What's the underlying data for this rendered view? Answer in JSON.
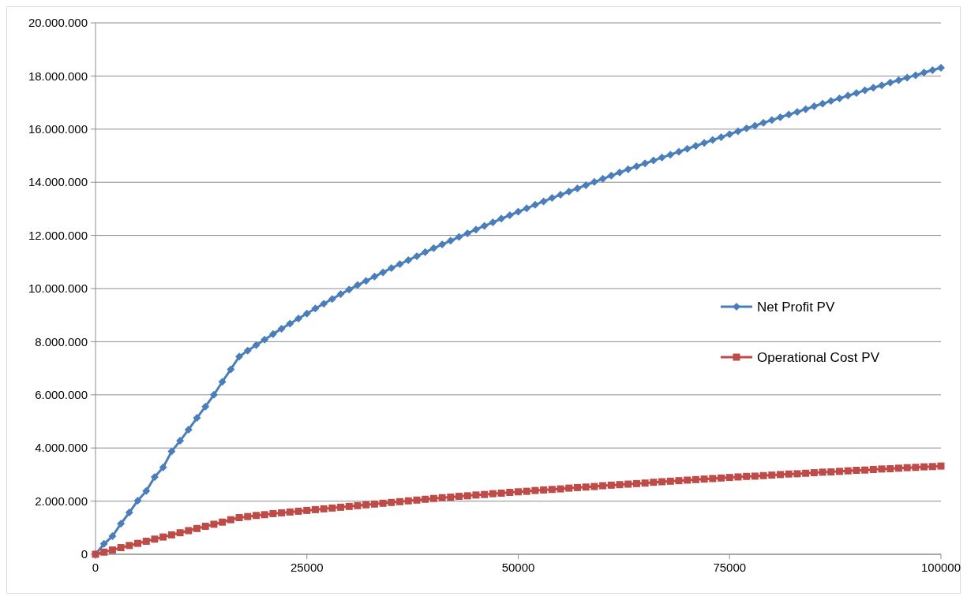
{
  "chart_data": {
    "type": "line",
    "x": [
      0,
      1000,
      2000,
      3000,
      4000,
      5000,
      6000,
      7000,
      8000,
      9000,
      10000,
      11000,
      12000,
      13000,
      14000,
      15000,
      16000,
      17000,
      18000,
      19000,
      20000,
      21000,
      22000,
      23000,
      24000,
      25000,
      26000,
      27000,
      28000,
      29000,
      30000,
      31000,
      32000,
      33000,
      34000,
      35000,
      36000,
      37000,
      38000,
      39000,
      40000,
      41000,
      42000,
      43000,
      44000,
      45000,
      46000,
      47000,
      48000,
      49000,
      50000,
      51000,
      52000,
      53000,
      54000,
      55000,
      56000,
      57000,
      58000,
      59000,
      60000,
      61000,
      62000,
      63000,
      64000,
      65000,
      66000,
      67000,
      68000,
      69000,
      70000,
      71000,
      72000,
      73000,
      74000,
      75000,
      76000,
      77000,
      78000,
      79000,
      80000,
      81000,
      82000,
      83000,
      84000,
      85000,
      86000,
      87000,
      88000,
      89000,
      90000,
      91000,
      92000,
      93000,
      94000,
      95000,
      96000,
      97000,
      98000,
      99000,
      100000
    ],
    "series": [
      {
        "name": "Net Profit PV",
        "color": "#4a7ebb",
        "marker": "diamond",
        "values": [
          0,
          390000,
          680000,
          1150000,
          1570000,
          2020000,
          2380000,
          2910000,
          3270000,
          3870000,
          4270000,
          4690000,
          5130000,
          5560000,
          6000000,
          6490000,
          6960000,
          7440000,
          7660000,
          7870000,
          8080000,
          8290000,
          8490000,
          8680000,
          8870000,
          9060000,
          9250000,
          9430000,
          9610000,
          9790000,
          9960000,
          10130000,
          10290000,
          10450000,
          10610000,
          10770000,
          10920000,
          11070000,
          11220000,
          11370000,
          11520000,
          11660000,
          11800000,
          11940000,
          12080000,
          12220000,
          12360000,
          12490000,
          12630000,
          12760000,
          12890000,
          13020000,
          13150000,
          13280000,
          13410000,
          13530000,
          13650000,
          13770000,
          13890000,
          14010000,
          14130000,
          14250000,
          14370000,
          14490000,
          14600000,
          14710000,
          14820000,
          14930000,
          15040000,
          15150000,
          15260000,
          15370000,
          15480000,
          15590000,
          15700000,
          15810000,
          15920000,
          16030000,
          16130000,
          16240000,
          16340000,
          16450000,
          16550000,
          16650000,
          16750000,
          16860000,
          16960000,
          17060000,
          17160000,
          17260000,
          17360000,
          17460000,
          17560000,
          17650000,
          17750000,
          17840000,
          17940000,
          18030000,
          18130000,
          18220000,
          18310000
        ]
      },
      {
        "name": "Operational Cost PV",
        "color": "#be4b48",
        "marker": "square",
        "values": [
          0,
          80000,
          160000,
          250000,
          330000,
          410000,
          490000,
          570000,
          650000,
          730000,
          810000,
          890000,
          970000,
          1050000,
          1130000,
          1210000,
          1300000,
          1380000,
          1420000,
          1460000,
          1490000,
          1530000,
          1560000,
          1590000,
          1620000,
          1650000,
          1680000,
          1710000,
          1740000,
          1770000,
          1800000,
          1830000,
          1860000,
          1890000,
          1920000,
          1950000,
          1980000,
          2010000,
          2040000,
          2070000,
          2100000,
          2130000,
          2150000,
          2180000,
          2200000,
          2230000,
          2250000,
          2280000,
          2300000,
          2330000,
          2350000,
          2370000,
          2400000,
          2420000,
          2440000,
          2460000,
          2490000,
          2510000,
          2530000,
          2550000,
          2580000,
          2600000,
          2620000,
          2640000,
          2660000,
          2680000,
          2710000,
          2730000,
          2750000,
          2770000,
          2790000,
          2810000,
          2830000,
          2850000,
          2870000,
          2890000,
          2910000,
          2930000,
          2940000,
          2960000,
          2980000,
          3000000,
          3020000,
          3030000,
          3050000,
          3070000,
          3090000,
          3100000,
          3120000,
          3140000,
          3160000,
          3170000,
          3190000,
          3210000,
          3220000,
          3240000,
          3260000,
          3270000,
          3290000,
          3300000,
          3320000
        ]
      }
    ],
    "xlim": [
      0,
      100000
    ],
    "xticks": [
      0,
      25000,
      50000,
      75000,
      100000
    ],
    "ylim": [
      0,
      20000000
    ],
    "yticks": [
      {
        "value": 0,
        "label": "0"
      },
      {
        "value": 2000000,
        "label": "2.000.000"
      },
      {
        "value": 4000000,
        "label": "4.000.000"
      },
      {
        "value": 6000000,
        "label": "6.000.000"
      },
      {
        "value": 8000000,
        "label": "8.000.000"
      },
      {
        "value": 10000000,
        "label": "10.000.000"
      },
      {
        "value": 12000000,
        "label": "12.000.000"
      },
      {
        "value": 14000000,
        "label": "14.000.000"
      },
      {
        "value": 16000000,
        "label": "16.000.000"
      },
      {
        "value": 18000000,
        "label": "18.000.000"
      },
      {
        "value": 20000000,
        "label": "20.000.000"
      }
    ],
    "grid": "y",
    "legend": "right",
    "line_style": "solid"
  }
}
